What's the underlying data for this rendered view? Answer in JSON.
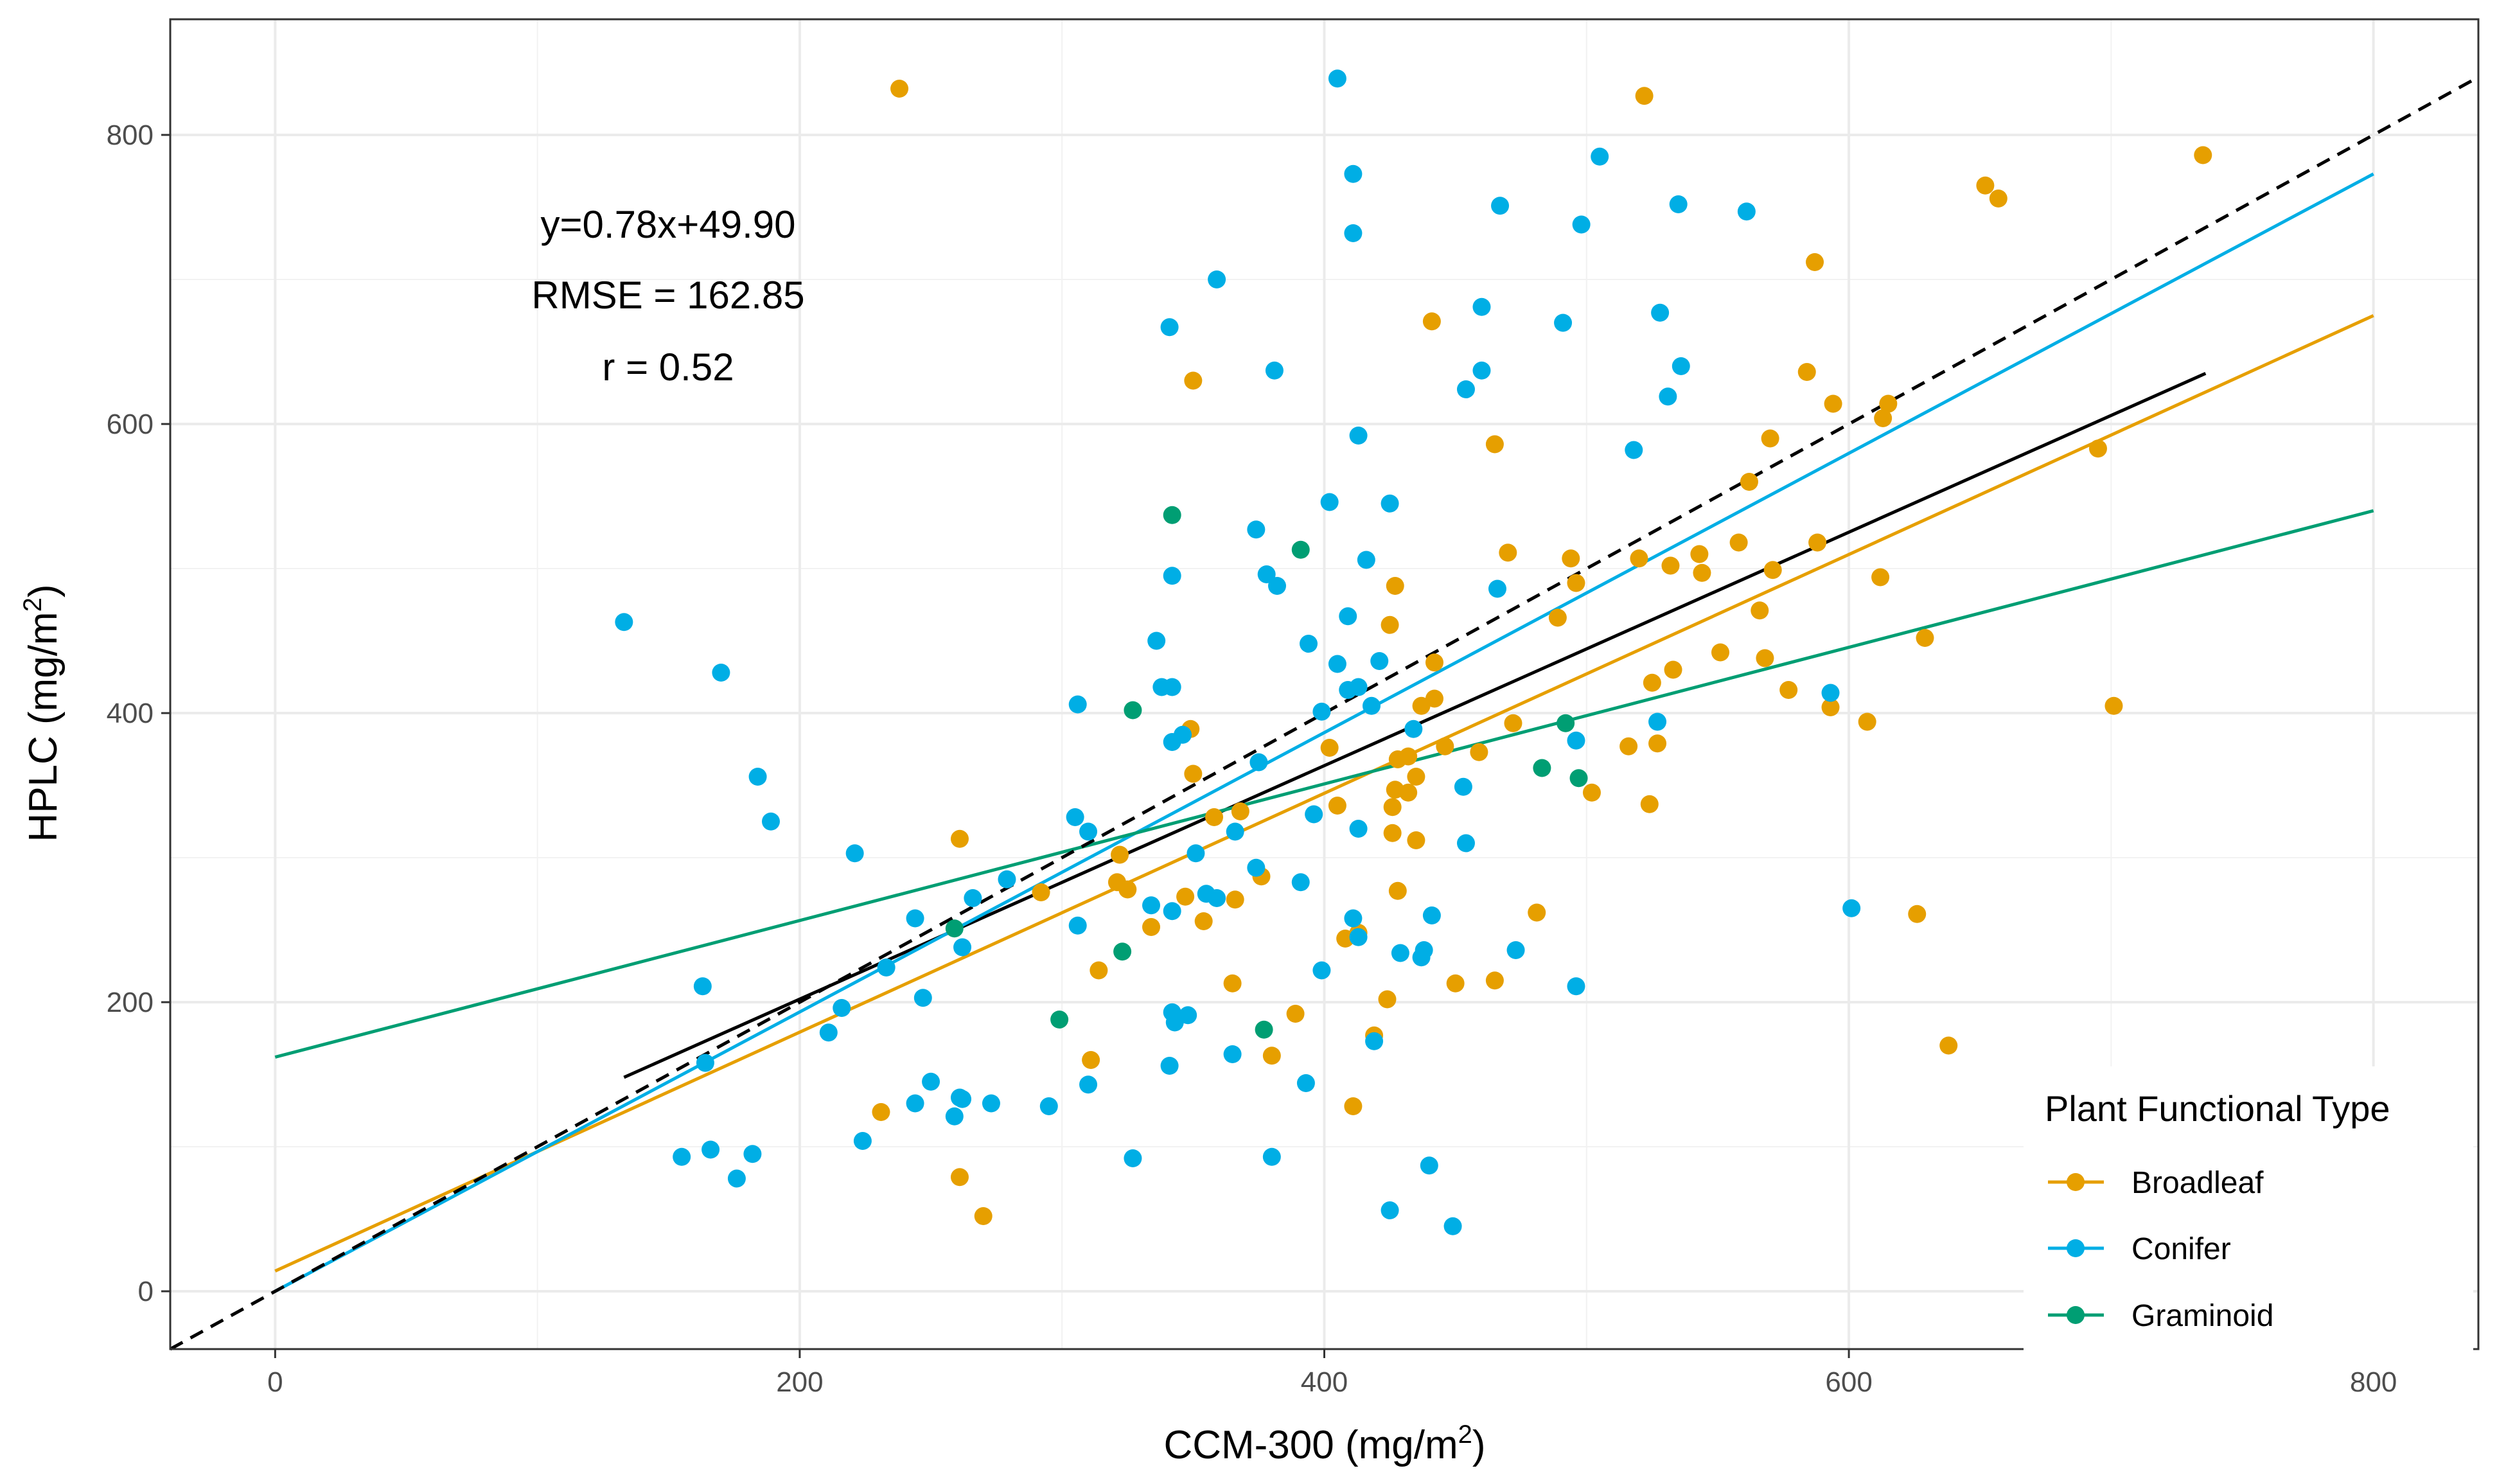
{
  "chart_data": {
    "type": "scatter",
    "xlabel": "CCM-300 (mg/m²)",
    "ylabel": "HPLC (mg/m²)",
    "xlabel_parts": {
      "pre": "CCM-300 (mg/m",
      "sup": "2",
      "post": ")"
    },
    "ylabel_parts": {
      "pre": "HPLC (mg/m",
      "sup": "2",
      "post": ")"
    },
    "xlim": [
      -40,
      840
    ],
    "ylim": [
      -40,
      880
    ],
    "xticks": [
      0,
      200,
      400,
      600,
      800
    ],
    "yticks": [
      0,
      200,
      400,
      600,
      800
    ],
    "grid": true,
    "annotations": [
      "y=0.78x+49.90",
      "RMSE = 162.85",
      "r = 0.52"
    ],
    "legend": {
      "title": "Plant Functional Type",
      "position": "bottom-right",
      "entries": [
        {
          "label": "Broadleaf",
          "color": "#E69F00"
        },
        {
          "label": "Conifer",
          "color": "#00AEE5"
        },
        {
          "label": "Graminoid",
          "color": "#009E73"
        }
      ]
    },
    "reference_line": {
      "description": "1:1",
      "slope": 1,
      "intercept": 0,
      "style": "dashed",
      "color": "#000000"
    },
    "fit_lines": [
      {
        "group": "All",
        "color": "#000000",
        "x": [
          133,
          736
        ],
        "y": [
          148,
          635
        ]
      },
      {
        "group": "Broadleaf",
        "color": "#E69F00",
        "x": [
          0,
          800
        ],
        "y": [
          14,
          675
        ]
      },
      {
        "group": "Conifer",
        "color": "#00AEE5",
        "x": [
          0,
          800
        ],
        "y": [
          0,
          773
        ]
      },
      {
        "group": "Graminoid",
        "color": "#009E73",
        "x": [
          0,
          800
        ],
        "y": [
          162,
          540
        ]
      }
    ],
    "series": [
      {
        "name": "Broadleaf",
        "color": "#E69F00",
        "points": [
          [
            238,
            832
          ],
          [
            522,
            827
          ],
          [
            735,
            786
          ],
          [
            652,
            765
          ],
          [
            657,
            756
          ],
          [
            587,
            712
          ],
          [
            441,
            671
          ],
          [
            350,
            630
          ],
          [
            584,
            636
          ],
          [
            594,
            614
          ],
          [
            615,
            614
          ],
          [
            613,
            604
          ],
          [
            570,
            590
          ],
          [
            465,
            586
          ],
          [
            562,
            560
          ],
          [
            695,
            583
          ],
          [
            470,
            511
          ],
          [
            543,
            510
          ],
          [
            558,
            518
          ],
          [
            588,
            518
          ],
          [
            494,
            507
          ],
          [
            520,
            507
          ],
          [
            532,
            502
          ],
          [
            544,
            497
          ],
          [
            571,
            499
          ],
          [
            612,
            494
          ],
          [
            427,
            488
          ],
          [
            496,
            490
          ],
          [
            566,
            471
          ],
          [
            489,
            466
          ],
          [
            425,
            461
          ],
          [
            551,
            442
          ],
          [
            568,
            438
          ],
          [
            442,
            435
          ],
          [
            533,
            430
          ],
          [
            525,
            421
          ],
          [
            577,
            416
          ],
          [
            442,
            410
          ],
          [
            437,
            405
          ],
          [
            593,
            404
          ],
          [
            701,
            405
          ],
          [
            607,
            394
          ],
          [
            472,
            393
          ],
          [
            349,
            389
          ],
          [
            402,
            376
          ],
          [
            446,
            377
          ],
          [
            459,
            373
          ],
          [
            516,
            377
          ],
          [
            527,
            379
          ],
          [
            428,
            368
          ],
          [
            432,
            370
          ],
          [
            350,
            358
          ],
          [
            435,
            356
          ],
          [
            502,
            345
          ],
          [
            427,
            347
          ],
          [
            432,
            345
          ],
          [
            405,
            336
          ],
          [
            426,
            335
          ],
          [
            524,
            337
          ],
          [
            368,
            332
          ],
          [
            358,
            328
          ],
          [
            426,
            317
          ],
          [
            435,
            312
          ],
          [
            261,
            313
          ],
          [
            322,
            302
          ],
          [
            321,
            283
          ],
          [
            376,
            287
          ],
          [
            325,
            278
          ],
          [
            428,
            277
          ],
          [
            292,
            276
          ],
          [
            347,
            273
          ],
          [
            366,
            271
          ],
          [
            334,
            252
          ],
          [
            354,
            256
          ],
          [
            481,
            262
          ],
          [
            626,
            261
          ],
          [
            629,
            452
          ],
          [
            413,
            248
          ],
          [
            408,
            244
          ],
          [
            314,
            222
          ],
          [
            450,
            213
          ],
          [
            465,
            215
          ],
          [
            365,
            213
          ],
          [
            424,
            202
          ],
          [
            389,
            192
          ],
          [
            419,
            177
          ],
          [
            380,
            163
          ],
          [
            311,
            160
          ],
          [
            231,
            124
          ],
          [
            411,
            128
          ],
          [
            638,
            170
          ],
          [
            261,
            79
          ],
          [
            270,
            52
          ]
        ]
      },
      {
        "name": "Conifer",
        "color": "#00AEE5",
        "points": [
          [
            405,
            839
          ],
          [
            505,
            785
          ],
          [
            411,
            773
          ],
          [
            535,
            752
          ],
          [
            467,
            751
          ],
          [
            561,
            747
          ],
          [
            498,
            738
          ],
          [
            411,
            732
          ],
          [
            359,
            700
          ],
          [
            528,
            677
          ],
          [
            460,
            681
          ],
          [
            491,
            670
          ],
          [
            341,
            667
          ],
          [
            381,
            637
          ],
          [
            460,
            637
          ],
          [
            536,
            640
          ],
          [
            454,
            624
          ],
          [
            531,
            619
          ],
          [
            413,
            592
          ],
          [
            518,
            582
          ],
          [
            402,
            546
          ],
          [
            425,
            545
          ],
          [
            374,
            527
          ],
          [
            416,
            506
          ],
          [
            342,
            495
          ],
          [
            378,
            496
          ],
          [
            382,
            488
          ],
          [
            466,
            486
          ],
          [
            409,
            467
          ],
          [
            133,
            463
          ],
          [
            394,
            448
          ],
          [
            336,
            450
          ],
          [
            405,
            434
          ],
          [
            421,
            436
          ],
          [
            170,
            428
          ],
          [
            413,
            418
          ],
          [
            342,
            418
          ],
          [
            338,
            418
          ],
          [
            409,
            416
          ],
          [
            593,
            414
          ],
          [
            306,
            406
          ],
          [
            418,
            405
          ],
          [
            346,
            385
          ],
          [
            342,
            380
          ],
          [
            399,
            401
          ],
          [
            527,
            394
          ],
          [
            434,
            389
          ],
          [
            496,
            381
          ],
          [
            375,
            366
          ],
          [
            184,
            356
          ],
          [
            189,
            325
          ],
          [
            453,
            349
          ],
          [
            305,
            328
          ],
          [
            396,
            330
          ],
          [
            413,
            320
          ],
          [
            366,
            318
          ],
          [
            310,
            318
          ],
          [
            221,
            303
          ],
          [
            454,
            310
          ],
          [
            351,
            303
          ],
          [
            279,
            285
          ],
          [
            374,
            293
          ],
          [
            391,
            283
          ],
          [
            266,
            272
          ],
          [
            355,
            275
          ],
          [
            359,
            272
          ],
          [
            334,
            267
          ],
          [
            342,
            263
          ],
          [
            306,
            253
          ],
          [
            411,
            258
          ],
          [
            441,
            260
          ],
          [
            244,
            258
          ],
          [
            262,
            238
          ],
          [
            413,
            245
          ],
          [
            473,
            236
          ],
          [
            429,
            234
          ],
          [
            438,
            236
          ],
          [
            437,
            231
          ],
          [
            399,
            222
          ],
          [
            211,
            179
          ],
          [
            233,
            224
          ],
          [
            163,
            211
          ],
          [
            247,
            203
          ],
          [
            216,
            196
          ],
          [
            342,
            193
          ],
          [
            343,
            186
          ],
          [
            348,
            191
          ],
          [
            419,
            173
          ],
          [
            365,
            164
          ],
          [
            164,
            158
          ],
          [
            310,
            143
          ],
          [
            393,
            144
          ],
          [
            341,
            156
          ],
          [
            250,
            145
          ],
          [
            295,
            128
          ],
          [
            244,
            130
          ],
          [
            259,
            121
          ],
          [
            262,
            133
          ],
          [
            261,
            134
          ],
          [
            273,
            130
          ],
          [
            224,
            104
          ],
          [
            155,
            93
          ],
          [
            166,
            98
          ],
          [
            182,
            95
          ],
          [
            176,
            78
          ],
          [
            327,
            92
          ],
          [
            380,
            93
          ],
          [
            440,
            87
          ],
          [
            425,
            56
          ],
          [
            449,
            45
          ],
          [
            601,
            265
          ],
          [
            496,
            211
          ]
        ]
      },
      {
        "name": "Graminoid",
        "color": "#009E73",
        "points": [
          [
            342,
            537
          ],
          [
            391,
            513
          ],
          [
            327,
            402
          ],
          [
            492,
            393
          ],
          [
            483,
            362
          ],
          [
            497,
            355
          ],
          [
            259,
            251
          ],
          [
            323,
            235
          ],
          [
            299,
            188
          ],
          [
            377,
            181
          ]
        ]
      }
    ]
  }
}
